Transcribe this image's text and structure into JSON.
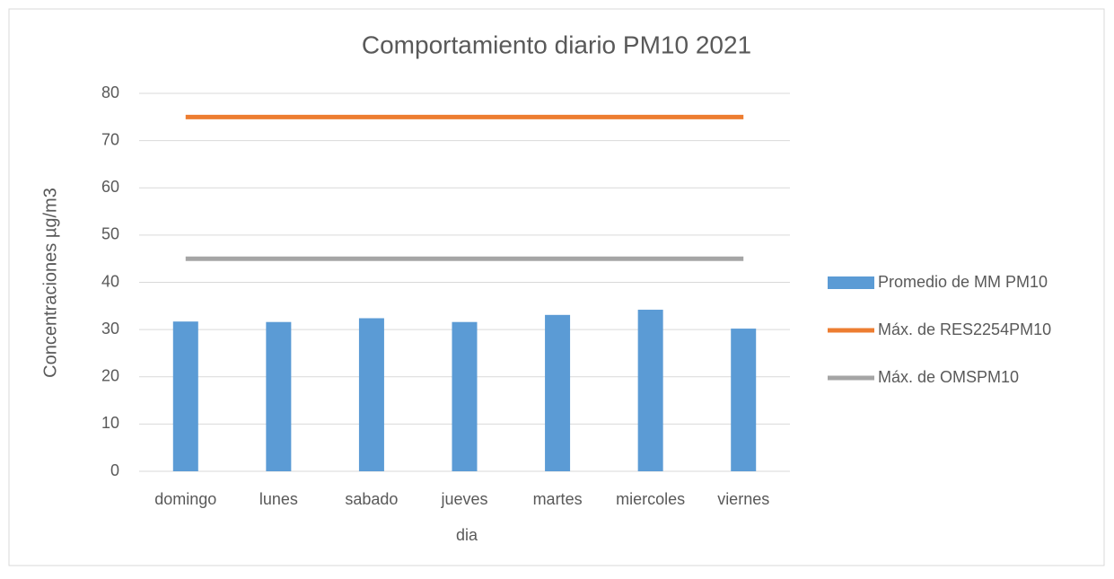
{
  "chart_data": {
    "type": "bar",
    "title": "Comportamiento diario PM10 2021",
    "x_label": "dia",
    "y_label": "Concentraciones µg/m3",
    "categories": [
      "domingo",
      "lunes",
      "sabado",
      "jueves",
      "martes",
      "miercoles",
      "viernes"
    ],
    "series": [
      {
        "name": "Promedio de MM PM10",
        "type": "bar",
        "color": "#5b9bd5",
        "values": [
          31.7,
          31.6,
          32.4,
          31.6,
          33.1,
          34.2,
          30.2
        ]
      },
      {
        "name": "Máx. de RES2254PM10",
        "type": "line",
        "color": "#ed7d31",
        "values": [
          75,
          75,
          75,
          75,
          75,
          75,
          75
        ]
      },
      {
        "name": "Máx. de OMSPM10",
        "type": "line",
        "color": "#a5a5a5",
        "values": [
          45,
          45,
          45,
          45,
          45,
          45,
          45
        ]
      }
    ],
    "ylim": [
      0,
      80
    ],
    "yticks": [
      0,
      10,
      20,
      30,
      40,
      50,
      60,
      70,
      80
    ],
    "grid": true,
    "legend": "right"
  }
}
